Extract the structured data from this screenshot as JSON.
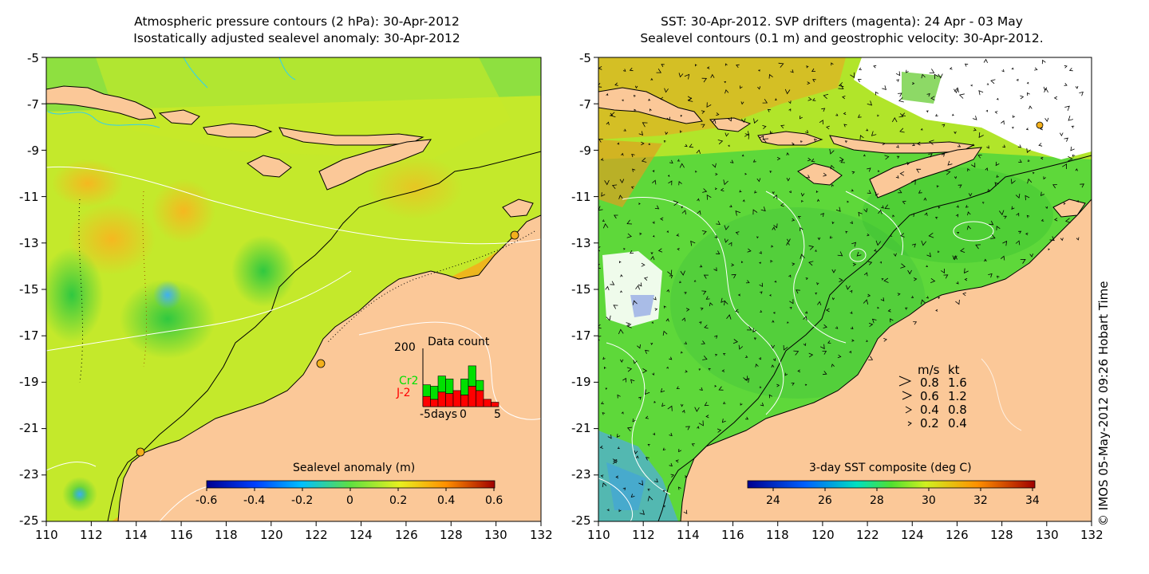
{
  "left_panel": {
    "title_line1": "Atmospheric pressure contours (2 hPa): 30-Apr-2012",
    "title_line2": "Isostatically adjusted sealevel anomaly: 30-Apr-2012",
    "colorbar_label": "Sealevel anomaly (m)",
    "colorbar_ticks": [
      "-0.6",
      "-0.4",
      "-0.2",
      "0",
      "0.2",
      "0.4",
      "0.6"
    ],
    "inset": {
      "title": "Data count",
      "ymax_label": "200",
      "series": [
        {
          "name": "Cr2",
          "color": "#00e000"
        },
        {
          "name": "J-2",
          "color": "#ff0000"
        }
      ],
      "xlabel": "days",
      "xticks": [
        "-5",
        "0",
        "5"
      ]
    }
  },
  "right_panel": {
    "title_line1": "SST: 30-Apr-2012. SVP drifters (magenta): 24 Apr - 03 May",
    "title_line2": "Sealevel contours (0.1 m) and geostrophic velocity: 30-Apr-2012.",
    "colorbar_label": "3-day SST composite (deg C)",
    "colorbar_ticks": [
      "24",
      "26",
      "28",
      "30",
      "32",
      "34"
    ],
    "velocity_legend": {
      "header_ms": "m/s",
      "header_kt": "kt",
      "rows": [
        {
          "ms": "0.8",
          "kt": "1.6"
        },
        {
          "ms": "0.6",
          "kt": "1.2"
        },
        {
          "ms": "0.4",
          "kt": "0.8"
        },
        {
          "ms": "0.2",
          "kt": "0.4"
        }
      ]
    }
  },
  "axes": {
    "x_ticks": [
      "110",
      "112",
      "114",
      "116",
      "118",
      "120",
      "122",
      "124",
      "126",
      "128",
      "130",
      "132"
    ],
    "y_ticks": [
      "-5",
      "-7",
      "-9",
      "-11",
      "-13",
      "-15",
      "-17",
      "-19",
      "-21",
      "-23",
      "-25"
    ]
  },
  "credit": "© IMOS 05-May-2012 09:26 Hobart Time",
  "colors": {
    "land": "#fbc898",
    "sea_green": "#7fe030",
    "sea_yellow": "#ddef1e",
    "sea_orange": "#f6c21a"
  },
  "chart_data": {
    "type": "bar",
    "title": "Data count",
    "x": [
      -5,
      -4,
      -3,
      -2,
      -1,
      0,
      1,
      2,
      3,
      4
    ],
    "series": [
      {
        "name": "J-2",
        "values": [
          35,
          25,
          50,
          45,
          55,
          40,
          70,
          55,
          25,
          15
        ]
      },
      {
        "name": "Cr2",
        "values": [
          40,
          45,
          55,
          50,
          0,
          55,
          70,
          35,
          0,
          0
        ]
      }
    ],
    "ylim": [
      0,
      200
    ],
    "xlim": [
      -5,
      5
    ]
  }
}
